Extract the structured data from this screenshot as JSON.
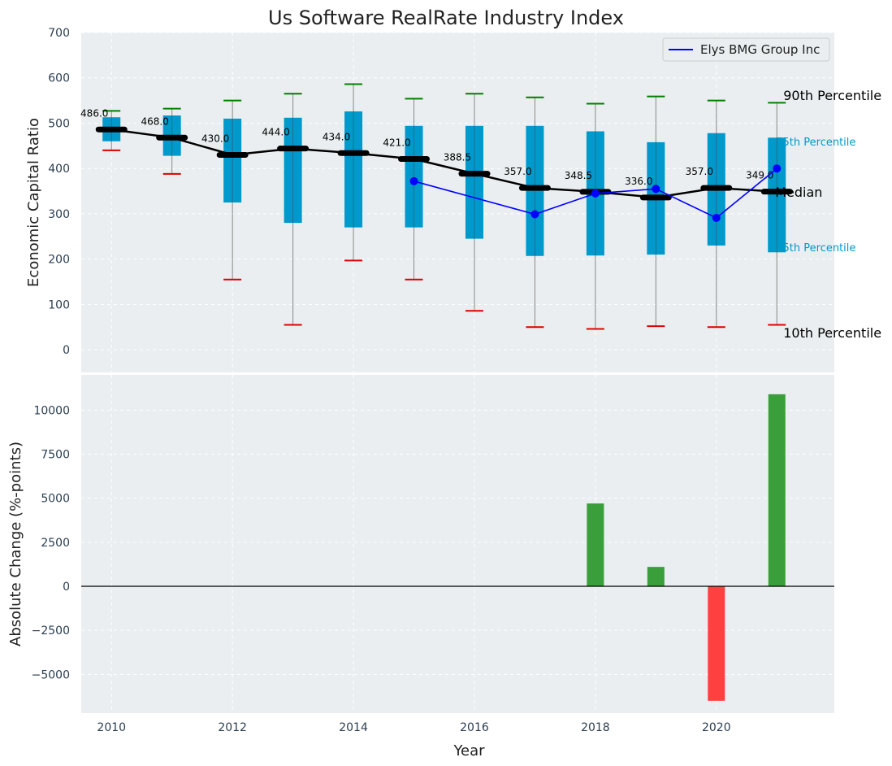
{
  "chart_data": {
    "type": "box-and-bar",
    "title": "Us Software RealRate Industry Index",
    "colors": {
      "background": "#eaeef0",
      "box": "#0099cc",
      "median": "#000000",
      "company": "#0000ff",
      "p90_cap": "#008000",
      "p10_cap": "#dd0000",
      "bar_positive": "#3a9e3a",
      "bar_negative": "#ff4040"
    },
    "top_panel": {
      "ylabel": "Economic Capital Ratio",
      "ylim": [
        -50,
        700
      ],
      "yticks": [
        0,
        100,
        200,
        300,
        400,
        500,
        600,
        700
      ],
      "legend": {
        "position": "top-right",
        "label": "Elys BMG Group Inc"
      },
      "years": [
        2010,
        2011,
        2012,
        2013,
        2014,
        2015,
        2016,
        2017,
        2018,
        2019,
        2020,
        2021
      ],
      "p10": [
        440,
        388,
        155,
        55,
        197,
        155,
        86,
        50,
        46,
        52,
        50,
        55
      ],
      "p25": [
        460,
        428,
        325,
        280,
        270,
        270,
        245,
        207,
        208,
        210,
        230,
        215
      ],
      "median": [
        486,
        468,
        430,
        444,
        434,
        421,
        388.5,
        357,
        348.5,
        336,
        357,
        349
      ],
      "median_labels": [
        "486.0",
        "468.0",
        "430.0",
        "444.0",
        "434.0",
        "421.0",
        "388.5",
        "357.0",
        "348.5",
        "336.0",
        "357.0",
        "349.0"
      ],
      "p75": [
        513,
        517,
        510,
        512,
        526,
        494,
        494,
        494,
        482,
        458,
        478,
        468
      ],
      "p90": [
        527,
        532,
        550,
        565,
        586,
        554,
        565,
        557,
        543,
        559,
        550,
        545
      ],
      "company": {
        "name": "Elys BMG Group Inc",
        "years": [
          2015,
          2017,
          2018,
          2019,
          2020,
          2021
        ],
        "values": [
          372,
          299,
          345,
          355,
          291,
          400
        ]
      },
      "annotations": {
        "p90": "90th Percentile",
        "p75": "75th Percentile",
        "median": "Median",
        "p25": "25th Percentile",
        "p10": "10th Percentile"
      }
    },
    "bottom_panel": {
      "xlabel": "Year",
      "ylabel": "Absolute Change (%-points)",
      "ylim": [
        -7200,
        12000
      ],
      "yticks": [
        -5000,
        -2500,
        0,
        2500,
        5000,
        7500,
        10000
      ],
      "ytick_labels": [
        "−5000",
        "−2500",
        "0",
        "2500",
        "5000",
        "7500",
        "10000"
      ],
      "xticks": [
        2010,
        2012,
        2014,
        2016,
        2018,
        2020
      ],
      "bars": {
        "years": [
          2018,
          2019,
          2020,
          2021
        ],
        "values": [
          4700,
          1100,
          -6500,
          10900
        ]
      }
    }
  }
}
